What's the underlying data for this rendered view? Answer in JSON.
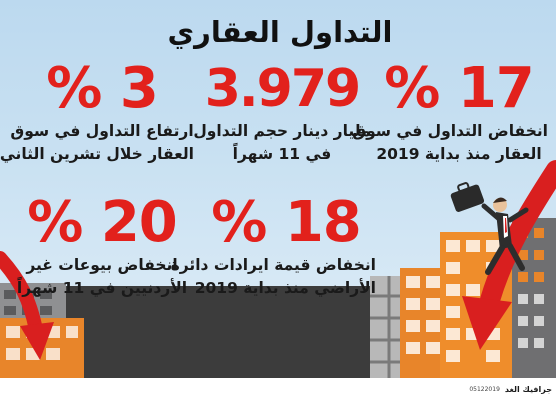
{
  "title": "التداول العقاري",
  "stats": [
    {
      "number": "17 %",
      "line1": "انخفاض التداول في سوق",
      "line2": "العقار منذ بداية 2019"
    },
    {
      "number": "3.979",
      "line1": "مليار دينار حجم التداول",
      "line2": "في 11 شهراً"
    },
    {
      "number": "3 %",
      "line1": "ارتفاع التداول في سوق",
      "line2": "العقار خلال تشرين الثاني"
    },
    {
      "number": "18 %",
      "line1": "انخفاض قيمة ايرادات دائرة",
      "line2": "الأراضي منذ بداية 2019"
    },
    {
      "number": "20 %",
      "line1": "انخفاض بيوعات غير",
      "line2": "الأردنيين في 11 شهراً"
    }
  ],
  "credit": {
    "name": "جرافيك الغد",
    "date": "05122019"
  },
  "colors": {
    "accent": "#e2211c",
    "sky": "#c9e1f2",
    "building_orange": "#e8852a",
    "building_dark": "#4a4a4a",
    "arrow_red": "#d91f1f"
  },
  "icons": {
    "building": "building-illustration",
    "arrow": "falling-arrow",
    "person": "falling-businessman"
  }
}
